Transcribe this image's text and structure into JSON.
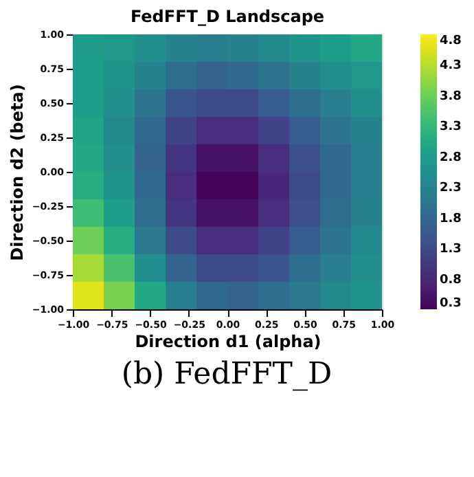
{
  "chart_data": {
    "type": "heatmap",
    "title": "FedFFT_D Landscape",
    "xlabel": "Direction d1 (alpha)",
    "ylabel": "Direction d2 (beta)",
    "xlim": [
      -1.0,
      1.0
    ],
    "ylim": [
      -1.0,
      1.0
    ],
    "xticks": [
      {
        "value": -1,
        "label": "−1.00"
      },
      {
        "value": -0.75,
        "label": "−0.75"
      },
      {
        "value": -0.5,
        "label": "−0.50"
      },
      {
        "value": -0.25,
        "label": "−0.25"
      },
      {
        "value": 0,
        "label": "0.00"
      },
      {
        "value": 0.25,
        "label": "0.25"
      },
      {
        "value": 0.5,
        "label": "0.50"
      },
      {
        "value": 0.75,
        "label": "0.75"
      },
      {
        "value": 1,
        "label": "1.00"
      }
    ],
    "yticks": [
      {
        "value": -1,
        "label": "−1.00"
      },
      {
        "value": -0.75,
        "label": "−0.75"
      },
      {
        "value": -0.5,
        "label": "−0.50"
      },
      {
        "value": -0.25,
        "label": "−0.25"
      },
      {
        "value": 0,
        "label": "0.00"
      },
      {
        "value": 0.25,
        "label": "0.25"
      },
      {
        "value": 0.5,
        "label": "0.50"
      },
      {
        "value": 0.75,
        "label": "0.75"
      },
      {
        "value": 1,
        "label": "1.00"
      }
    ],
    "clim": [
      0.3,
      4.8
    ],
    "cticks": [
      0.3,
      0.8,
      1.3,
      1.8,
      2.3,
      2.8,
      3.3,
      3.8,
      4.3,
      4.8
    ],
    "cells": [
      [
        2.8,
        2.7,
        2.5,
        2.3,
        2.2,
        2.3,
        2.4,
        2.6,
        2.8,
        3.0
      ],
      [
        2.8,
        2.6,
        2.3,
        1.9,
        1.7,
        1.8,
        2.0,
        2.3,
        2.5,
        2.7
      ],
      [
        2.8,
        2.5,
        2.0,
        1.5,
        1.3,
        1.3,
        1.6,
        1.9,
        2.2,
        2.5
      ],
      [
        2.9,
        2.4,
        1.8,
        1.2,
        0.9,
        0.9,
        1.2,
        1.6,
        2.0,
        2.3
      ],
      [
        3.0,
        2.5,
        1.7,
        1.0,
        0.5,
        0.5,
        0.9,
        1.4,
        1.8,
        2.2
      ],
      [
        3.1,
        2.6,
        1.8,
        0.9,
        0.35,
        0.35,
        0.8,
        1.3,
        1.8,
        2.2
      ],
      [
        3.4,
        2.8,
        1.9,
        1.0,
        0.5,
        0.5,
        0.9,
        1.4,
        1.9,
        2.3
      ],
      [
        3.8,
        3.1,
        2.1,
        1.3,
        0.9,
        0.9,
        1.2,
        1.6,
        2.0,
        2.4
      ],
      [
        4.2,
        3.5,
        2.5,
        1.7,
        1.3,
        1.3,
        1.5,
        1.9,
        2.2,
        2.5
      ],
      [
        4.6,
        3.9,
        3.0,
        2.2,
        1.8,
        1.7,
        1.9,
        2.1,
        2.4,
        2.6
      ]
    ],
    "annotations": [
      "(b) FedFFT_D"
    ]
  }
}
